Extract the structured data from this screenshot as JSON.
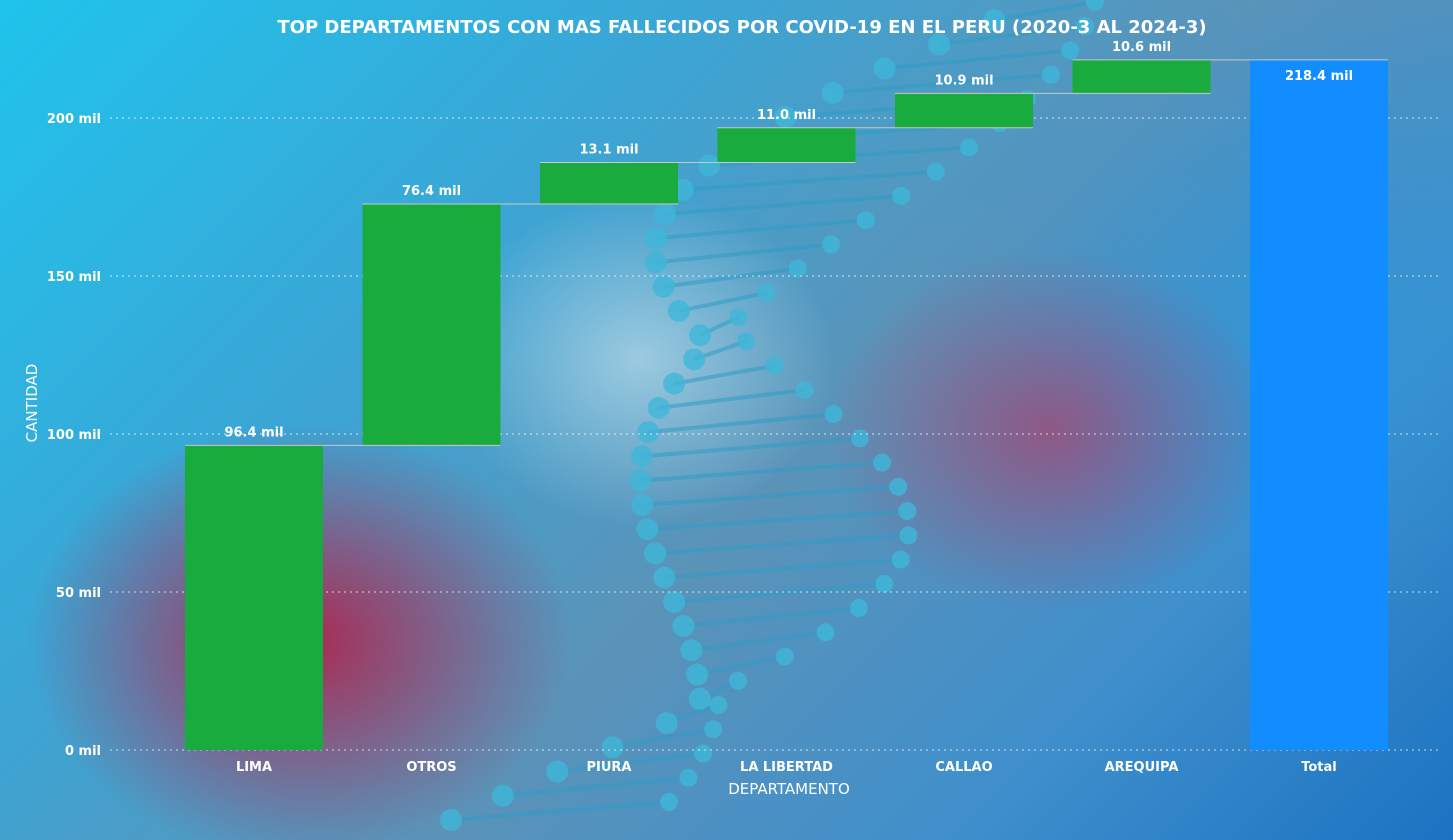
{
  "chart_data": {
    "type": "waterfall",
    "title": "TOP DEPARTAMENTOS CON MAS FALLECIDOS POR COVID-19 EN EL PERU (2020-3 AL 2024-3)",
    "xlabel": "DEPARTAMENTO",
    "ylabel": "CANTIDAD",
    "categories": [
      "LIMA",
      "OTROS",
      "PIURA",
      "LA LIBERTAD",
      "CALLAO",
      "AREQUIPA",
      "Total"
    ],
    "values": [
      96.4,
      76.4,
      13.1,
      11.0,
      10.9,
      10.6,
      218.4
    ],
    "value_labels": [
      "96.4 mil",
      "76.4 mil",
      "13.1 mil",
      "11.0 mil",
      "10.9 mil",
      "10.6 mil",
      "218.4 mil"
    ],
    "is_total": [
      false,
      false,
      false,
      false,
      false,
      false,
      true
    ],
    "ylim": [
      0,
      218.4
    ],
    "yticks": [
      0,
      50,
      100,
      150,
      200
    ],
    "ytick_labels": [
      "0 mil",
      "50 mil",
      "100 mil",
      "150 mil",
      "200 mil"
    ],
    "grid": true,
    "colors": {
      "increase": "#1aab3f",
      "total": "#118dff"
    }
  }
}
